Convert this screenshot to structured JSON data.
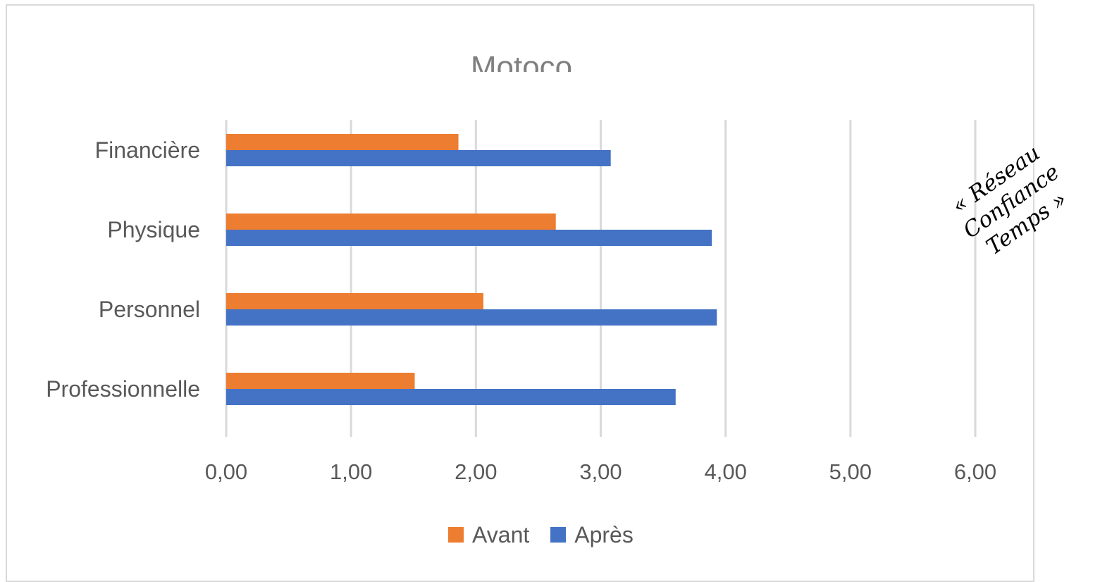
{
  "chart_data": {
    "type": "bar",
    "orientation": "horizontal",
    "title": "Motoco",
    "categories": [
      "Financière",
      "Physique",
      "Personnel",
      "Professionnelle"
    ],
    "series": [
      {
        "name": "Avant",
        "color": "#ed7d31",
        "values": [
          1.86,
          2.64,
          2.06,
          1.51
        ]
      },
      {
        "name": "Après",
        "color": "#4472c4",
        "values": [
          3.08,
          3.89,
          3.93,
          3.6
        ]
      }
    ],
    "xlim": [
      0,
      6
    ],
    "xticks": [
      "0,00",
      "1,00",
      "2,00",
      "3,00",
      "4,00",
      "5,00",
      "6,00"
    ],
    "grid": true,
    "legend_position": "bottom"
  },
  "annotation": {
    "lines": [
      "« Réseau",
      "Confiance",
      "Temps »"
    ]
  }
}
